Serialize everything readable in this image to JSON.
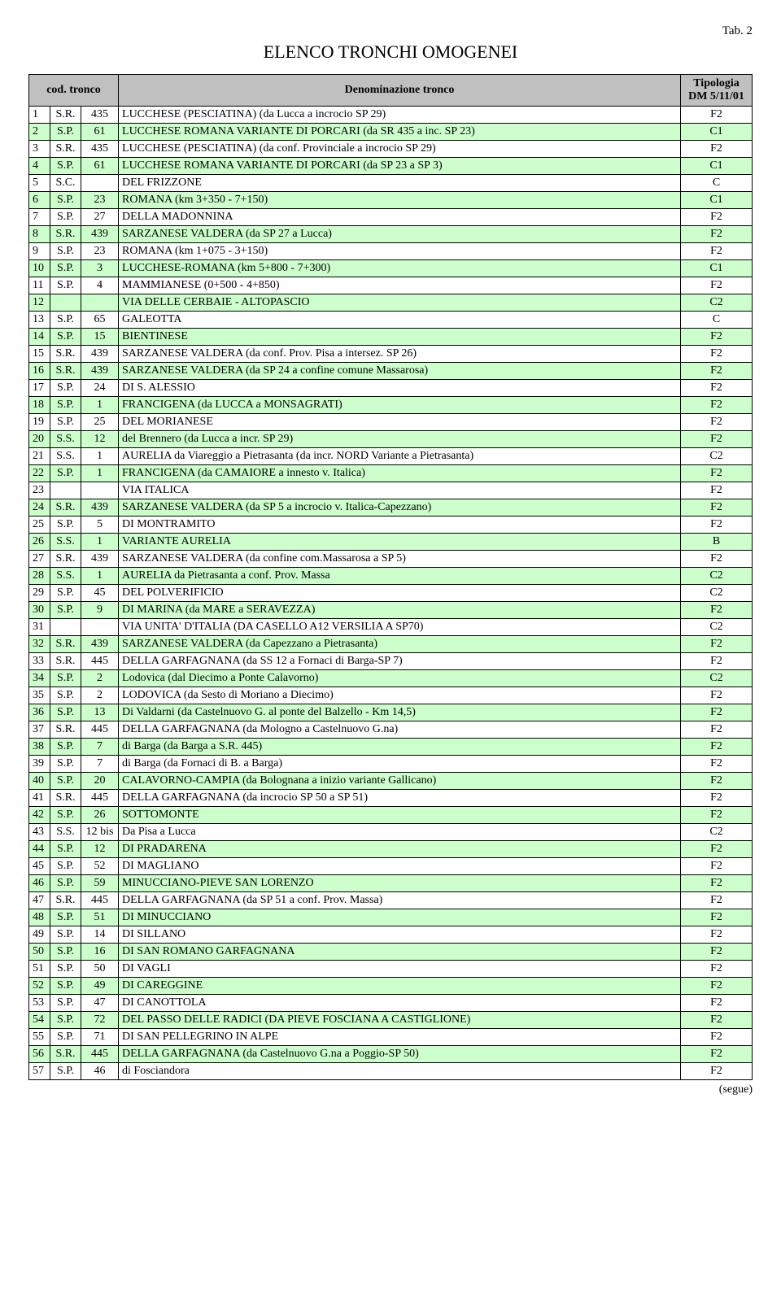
{
  "tab_label": "Tab. 2",
  "title": "ELENCO TRONCHI OMOGENEI",
  "headers": {
    "cod": "cod. tronco",
    "denom": "Denominazione tronco",
    "tip": "Tipologia DM 5/11/01"
  },
  "even_row_bg": "#ccffcc",
  "header_bg": "#c0c0c0",
  "rows": [
    {
      "n": "1",
      "p": "S.R.",
      "c": "435",
      "d": "LUCCHESE (PESCIATINA) (da Lucca a incrocio SP 29)",
      "t": "F2"
    },
    {
      "n": "2",
      "p": "S.P.",
      "c": "61",
      "d": "LUCCHESE ROMANA VARIANTE DI PORCARI (da SR 435 a inc. SP 23)",
      "t": "C1"
    },
    {
      "n": "3",
      "p": "S.R.",
      "c": "435",
      "d": "LUCCHESE (PESCIATINA) (da conf. Provinciale a incrocio SP 29)",
      "t": "F2"
    },
    {
      "n": "4",
      "p": "S.P.",
      "c": "61",
      "d": "LUCCHESE ROMANA VARIANTE DI PORCARI  (da SP 23 a SP 3)",
      "t": "C1"
    },
    {
      "n": "5",
      "p": "S.C.",
      "c": "",
      "d": "DEL FRIZZONE",
      "t": "C"
    },
    {
      "n": "6",
      "p": "S.P.",
      "c": "23",
      "d": "ROMANA (km 3+350 - 7+150)",
      "t": "C1"
    },
    {
      "n": "7",
      "p": "S.P.",
      "c": "27",
      "d": "DELLA MADONNINA",
      "t": "F2"
    },
    {
      "n": "8",
      "p": "S.R.",
      "c": "439",
      "d": "SARZANESE VALDERA (da SP 27 a Lucca)",
      "t": "F2"
    },
    {
      "n": "9",
      "p": "S.P.",
      "c": "23",
      "d": "ROMANA (km 1+075 - 3+150)",
      "t": "F2"
    },
    {
      "n": "10",
      "p": "S.P.",
      "c": "3",
      "d": "LUCCHESE-ROMANA (km 5+800 - 7+300)",
      "t": "C1"
    },
    {
      "n": "11",
      "p": "S.P.",
      "c": "4",
      "d": "MAMMIANESE (0+500 - 4+850)",
      "t": "F2"
    },
    {
      "n": "12",
      "p": "",
      "c": "",
      "d": "VIA DELLE CERBAIE - ALTOPASCIO",
      "t": "C2"
    },
    {
      "n": "13",
      "p": "S.P.",
      "c": "65",
      "d": "GALEOTTA",
      "t": "C"
    },
    {
      "n": "14",
      "p": "S.P.",
      "c": "15",
      "d": "BIENTINESE",
      "t": "F2"
    },
    {
      "n": "15",
      "p": "S.R.",
      "c": "439",
      "d": "SARZANESE VALDERA (da conf. Prov. Pisa a intersez. SP 26)",
      "t": "F2"
    },
    {
      "n": "16",
      "p": "S.R.",
      "c": "439",
      "d": "SARZANESE VALDERA (da SP 24 a confine comune Massarosa)",
      "t": "F2"
    },
    {
      "n": "17",
      "p": "S.P.",
      "c": "24",
      "d": "DI S. ALESSIO",
      "t": "F2"
    },
    {
      "n": "18",
      "p": "S.P.",
      "c": "1",
      "d": "FRANCIGENA (da LUCCA a MONSAGRATI)",
      "t": "F2"
    },
    {
      "n": "19",
      "p": "S.P.",
      "c": "25",
      "d": "DEL MORIANESE",
      "t": "F2"
    },
    {
      "n": "20",
      "p": "S.S.",
      "c": "12",
      "d": "del Brennero (da Lucca a incr. SP 29)",
      "t": "F2"
    },
    {
      "n": "21",
      "p": "S.S.",
      "c": "1",
      "d": "AURELIA da Viareggio a Pietrasanta (da incr. NORD Variante a Pietrasanta)",
      "t": "C2"
    },
    {
      "n": "22",
      "p": "S.P.",
      "c": "1",
      "d": "FRANCIGENA (da CAMAIORE a innesto v. Italica)",
      "t": "F2"
    },
    {
      "n": "23",
      "p": "",
      "c": "",
      "d": "VIA ITALICA",
      "t": "F2"
    },
    {
      "n": "24",
      "p": "S.R.",
      "c": "439",
      "d": "SARZANESE VALDERA (da SP 5 a incrocio v. Italica-Capezzano)",
      "t": "F2"
    },
    {
      "n": "25",
      "p": "S.P.",
      "c": "5",
      "d": "DI MONTRAMITO",
      "t": "F2"
    },
    {
      "n": "26",
      "p": "S.S.",
      "c": "1",
      "d": "VARIANTE AURELIA",
      "t": "B"
    },
    {
      "n": "27",
      "p": "S.R.",
      "c": "439",
      "d": "SARZANESE VALDERA (da confine com.Massarosa a SP 5)",
      "t": "F2"
    },
    {
      "n": "28",
      "p": "S.S.",
      "c": "1",
      "d": "AURELIA da Pietrasanta a conf. Prov. Massa",
      "t": "C2"
    },
    {
      "n": "29",
      "p": "S.P.",
      "c": "45",
      "d": "DEL POLVERIFICIO",
      "t": "C2"
    },
    {
      "n": "30",
      "p": "S.P.",
      "c": "9",
      "d": "DI MARINA (da MARE a SERAVEZZA)",
      "t": "F2"
    },
    {
      "n": "31",
      "p": "",
      "c": "",
      "d": "VIA UNITA' D'ITALIA (DA CASELLO A12 VERSILIA A SP70)",
      "t": "C2"
    },
    {
      "n": "32",
      "p": "S.R.",
      "c": "439",
      "d": "SARZANESE VALDERA (da Capezzano a Pietrasanta)",
      "t": "F2"
    },
    {
      "n": "33",
      "p": "S.R.",
      "c": "445",
      "d": "DELLA GARFAGNANA (da SS 12 a Fornaci di Barga-SP 7)",
      "t": "F2"
    },
    {
      "n": "34",
      "p": "S.P.",
      "c": "2",
      "d": "Lodovica (dal Diecimo a Ponte Calavorno)",
      "t": "C2"
    },
    {
      "n": "35",
      "p": "S.P.",
      "c": "2",
      "d": "LODOVICA (da Sesto di Moriano a Diecimo)",
      "t": "F2"
    },
    {
      "n": "36",
      "p": "S.P.",
      "c": "13",
      "d": "Di Valdarni (da Castelnuovo G. al ponte del Balzello - Km 14,5)",
      "t": "F2"
    },
    {
      "n": "37",
      "p": "S.R.",
      "c": "445",
      "d": "DELLA GARFAGNANA (da Mologno a Castelnuovo G.na)",
      "t": "F2"
    },
    {
      "n": "38",
      "p": "S.P.",
      "c": "7",
      "d": "di Barga  (da Barga a S.R. 445)",
      "t": "F2"
    },
    {
      "n": "39",
      "p": "S.P.",
      "c": "7",
      "d": "di Barga  (da Fornaci di B. a Barga)",
      "t": "F2"
    },
    {
      "n": "40",
      "p": "S.P.",
      "c": "20",
      "d": "CALAVORNO-CAMPIA (da Bolognana a inizio variante Gallicano)",
      "t": "F2"
    },
    {
      "n": "41",
      "p": "S.R.",
      "c": "445",
      "d": "DELLA GARFAGNANA (da incrocio SP 50 a SP 51)",
      "t": "F2"
    },
    {
      "n": "42",
      "p": "S.P.",
      "c": "26",
      "d": "SOTTOMONTE",
      "t": "F2"
    },
    {
      "n": "43",
      "p": "S.S.",
      "c": "12 bis",
      "d": "Da Pisa a Lucca",
      "t": "C2"
    },
    {
      "n": "44",
      "p": "S.P.",
      "c": "12",
      "d": "DI PRADARENA",
      "t": "F2"
    },
    {
      "n": "45",
      "p": "S.P.",
      "c": "52",
      "d": "DI MAGLIANO",
      "t": "F2"
    },
    {
      "n": "46",
      "p": "S.P.",
      "c": "59",
      "d": "MINUCCIANO-PIEVE SAN LORENZO",
      "t": "F2"
    },
    {
      "n": "47",
      "p": "S.R.",
      "c": "445",
      "d": "DELLA GARFAGNANA (da SP 51 a conf. Prov. Massa)",
      "t": "F2"
    },
    {
      "n": "48",
      "p": "S.P.",
      "c": "51",
      "d": "DI MINUCCIANO",
      "t": "F2"
    },
    {
      "n": "49",
      "p": "S.P.",
      "c": "14",
      "d": "DI SILLANO",
      "t": "F2"
    },
    {
      "n": "50",
      "p": "S.P.",
      "c": "16",
      "d": "DI SAN ROMANO GARFAGNANA",
      "t": "F2"
    },
    {
      "n": "51",
      "p": "S.P.",
      "c": "50",
      "d": "DI VAGLI",
      "t": "F2"
    },
    {
      "n": "52",
      "p": "S.P.",
      "c": "49",
      "d": "DI CAREGGINE",
      "t": "F2"
    },
    {
      "n": "53",
      "p": "S.P.",
      "c": "47",
      "d": "DI CANOTTOLA",
      "t": "F2"
    },
    {
      "n": "54",
      "p": "S.P.",
      "c": "72",
      "d": "DEL PASSO DELLE RADICI (DA PIEVE FOSCIANA A CASTIGLIONE)",
      "t": "F2"
    },
    {
      "n": "55",
      "p": "S.P.",
      "c": "71",
      "d": "DI SAN PELLEGRINO IN ALPE",
      "t": "F2"
    },
    {
      "n": "56",
      "p": "S.R.",
      "c": "445",
      "d": "DELLA GARFAGNANA (da Castelnuovo G.na a Poggio-SP 50)",
      "t": "F2"
    },
    {
      "n": "57",
      "p": "S.P.",
      "c": "46",
      "d": "di Fosciandora",
      "t": "F2"
    }
  ],
  "segue": "(segue)"
}
